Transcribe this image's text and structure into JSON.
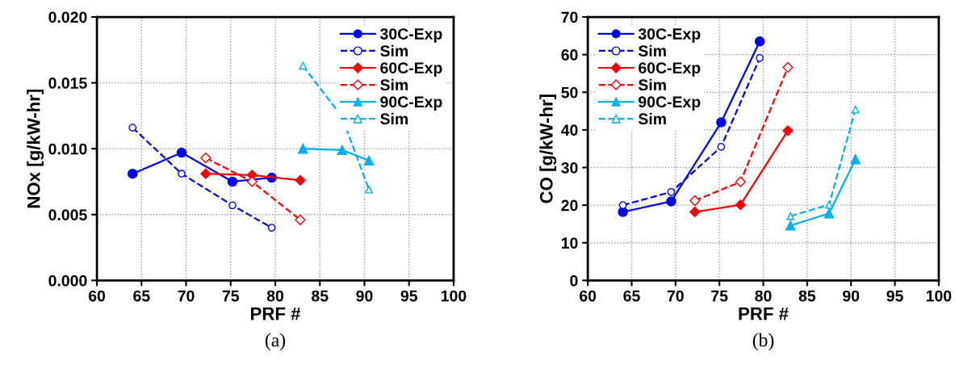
{
  "chart_data": [
    {
      "type": "line",
      "xlabel": "PRF #",
      "ylabel": "NOx [g/kW-hr]",
      "xlim": [
        60,
        100
      ],
      "xticks": [
        60,
        65,
        70,
        75,
        80,
        85,
        90,
        95,
        100
      ],
      "ylim": [
        0,
        0.02
      ],
      "yticks": [
        {
          "value": 0,
          "label": "0.000"
        },
        {
          "value": 0.005,
          "label": "0.005"
        },
        {
          "value": 0.01,
          "label": "0.010"
        },
        {
          "value": 0.015,
          "label": "0.015"
        },
        {
          "value": 0.02,
          "label": "0.020"
        }
      ],
      "grid": true,
      "legend": "top right",
      "annotations": [
        "(a)"
      ],
      "series": [
        {
          "name": "30C-Exp",
          "color": "#0000ff",
          "marker": "circle",
          "line_style": "solid",
          "x": [
            64.0,
            69.5,
            75.2,
            79.6
          ],
          "values": [
            0.0081,
            0.0097,
            0.0075,
            0.0078
          ]
        },
        {
          "name": "Sim",
          "color": "#0000ff",
          "marker": "circle",
          "line_style": "dashed",
          "x": [
            64.0,
            69.5,
            75.2,
            79.6
          ],
          "values": [
            0.0116,
            0.0081,
            0.0057,
            0.004
          ]
        },
        {
          "name": "60C-Exp",
          "color": "#ff0000",
          "marker": "diamond",
          "line_style": "solid",
          "x": [
            72.2,
            77.4,
            82.8
          ],
          "values": [
            0.0081,
            0.008,
            0.0076
          ]
        },
        {
          "name": "Sim",
          "color": "#ff0000",
          "marker": "diamond",
          "line_style": "dashed",
          "x": [
            72.2,
            77.4,
            82.8
          ],
          "values": [
            0.0093,
            0.0075,
            0.0046
          ]
        },
        {
          "name": "90C-Exp",
          "color": "#00b0f0",
          "marker": "triangle",
          "line_style": "solid",
          "x": [
            83.1,
            87.5,
            90.5
          ],
          "values": [
            0.01,
            0.0099,
            0.0091
          ]
        },
        {
          "name": "Sim",
          "color": "#00b0f0",
          "marker": "triangle",
          "line_style": "dashed",
          "x": [
            83.1,
            87.5,
            90.5
          ],
          "values": [
            0.0163,
            0.0124,
            0.0069
          ]
        }
      ]
    },
    {
      "type": "line",
      "xlabel": "PRF #",
      "ylabel": "CO [g/kW-hr]",
      "xlim": [
        60,
        100
      ],
      "xticks": [
        60,
        65,
        70,
        75,
        80,
        85,
        90,
        95,
        100
      ],
      "ylim": [
        0,
        70
      ],
      "yticks": [
        0,
        10,
        20,
        30,
        40,
        50,
        60,
        70
      ],
      "grid": true,
      "legend": "top left",
      "annotations": [
        "(b)"
      ],
      "series": [
        {
          "name": "30C-Exp",
          "color": "#0000ff",
          "marker": "circle",
          "line_style": "solid",
          "x": [
            64.0,
            69.5,
            75.2,
            79.6
          ],
          "values": [
            18.2,
            21.0,
            42.0,
            63.5
          ]
        },
        {
          "name": "Sim",
          "color": "#0000ff",
          "marker": "circle",
          "line_style": "dashed",
          "x": [
            64.0,
            69.5,
            75.2,
            79.6
          ],
          "values": [
            20.0,
            23.5,
            35.5,
            59.1
          ]
        },
        {
          "name": "60C-Exp",
          "color": "#ff0000",
          "marker": "diamond",
          "line_style": "solid",
          "x": [
            72.2,
            77.4,
            82.8
          ],
          "values": [
            18.2,
            20.1,
            39.8
          ]
        },
        {
          "name": "Sim",
          "color": "#ff0000",
          "marker": "diamond",
          "line_style": "dashed",
          "x": [
            72.2,
            77.4,
            82.8
          ],
          "values": [
            21.2,
            26.2,
            56.6
          ]
        },
        {
          "name": "90C-Exp",
          "color": "#00b0f0",
          "marker": "triangle",
          "line_style": "solid",
          "x": [
            83.1,
            87.5,
            90.5
          ],
          "values": [
            14.6,
            17.8,
            32.2
          ]
        },
        {
          "name": "Sim",
          "color": "#00b0f0",
          "marker": "triangle",
          "line_style": "dashed",
          "x": [
            83.1,
            87.5,
            90.5
          ],
          "values": [
            17.1,
            20.1,
            45.4
          ]
        }
      ]
    }
  ]
}
